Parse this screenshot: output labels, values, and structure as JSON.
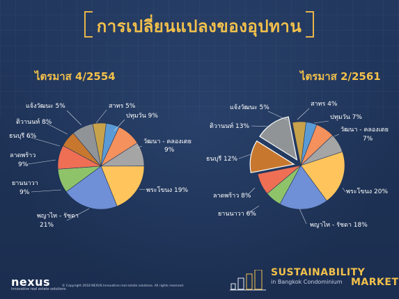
{
  "title": "การเปลี่ยนแปลงของอุปทาน",
  "colors": {
    "background": "#1f3358",
    "accent": "#f3c14b",
    "slices": [
      "#5b9bd5",
      "#f4915c",
      "#a5a5a5",
      "#ffc55c",
      "#6f8fd6",
      "#8fc36a",
      "#ef6f55",
      "#c7782e",
      "#909497",
      "#c8a24a"
    ]
  },
  "chart_data": [
    {
      "type": "pie",
      "title": "ไตรมาส 4/2554",
      "slices": [
        {
          "label": "สาทร",
          "value": 5
        },
        {
          "label": "ปทุมวัน",
          "value": 9
        },
        {
          "label": "วัฒนา - คลองเตย",
          "value": 9
        },
        {
          "label": "พระโขนง",
          "value": 19
        },
        {
          "label": "พญาไท - รัชดา",
          "value": 21
        },
        {
          "label": "ยานนาวา",
          "value": 9
        },
        {
          "label": "ลาดพร้าว",
          "value": 9
        },
        {
          "label": "ธนบุรี",
          "value": 6
        },
        {
          "label": "ดิวานนท์",
          "value": 8
        },
        {
          "label": "แจ้งวัฒนะ",
          "value": 5
        }
      ],
      "label_text": [
        "สาทร 5%",
        "ปทุมวัน 9%",
        "วัฒนา - คลองเตย",
        "9%",
        "พระโขนง 19%",
        "พญาไท - รัชดา",
        "21%",
        "ยานนาวา",
        "9%",
        "ลาดพร้าว",
        "9%",
        "ธนบุรี 6%",
        "ติวานนท์ 8%",
        "แจ้งวัฒนะ 5%"
      ]
    },
    {
      "type": "pie",
      "title": "ไตรมาส 2/2561",
      "slices": [
        {
          "label": "สาทร",
          "value": 4
        },
        {
          "label": "ปทุมวัน",
          "value": 7
        },
        {
          "label": "วัฒนา - คลองเตย",
          "value": 7
        },
        {
          "label": "พระโขนง",
          "value": 20
        },
        {
          "label": "พญาไท - รัชดา",
          "value": 18
        },
        {
          "label": "ยานนาวา",
          "value": 6
        },
        {
          "label": "ลาดพร้าว",
          "value": 8
        },
        {
          "label": "ธนบุรี",
          "value": 12,
          "exploded": true
        },
        {
          "label": "ติวานนท์",
          "value": 13,
          "exploded": true
        },
        {
          "label": "แจ้งวัฒนะ",
          "value": 5
        }
      ],
      "label_text": [
        "สาทร 4%",
        "ปทุมวัน 7%",
        "วัฒนา - คลองเตย",
        "7%",
        "พระโขนง 20%",
        "พญาไท - รัชดา 18%",
        "ยานนาวา 6%",
        "ลาดพร้าว 8%",
        "ธนบุรี 12%",
        "ติวานนท์ 13%",
        "แจ้งวัฒนะ 5%"
      ]
    }
  ],
  "footer": {
    "brand": "nexus",
    "brand_sub": "innovative real estate solutions",
    "copyright": "© Copyright 2018 NEXUS Innovative real estate solutions. All rights reserved.",
    "sustainability": "SUSTAINABILITY",
    "sustainability_sub": "in Bangkok Condominium",
    "market": "MARKET"
  }
}
